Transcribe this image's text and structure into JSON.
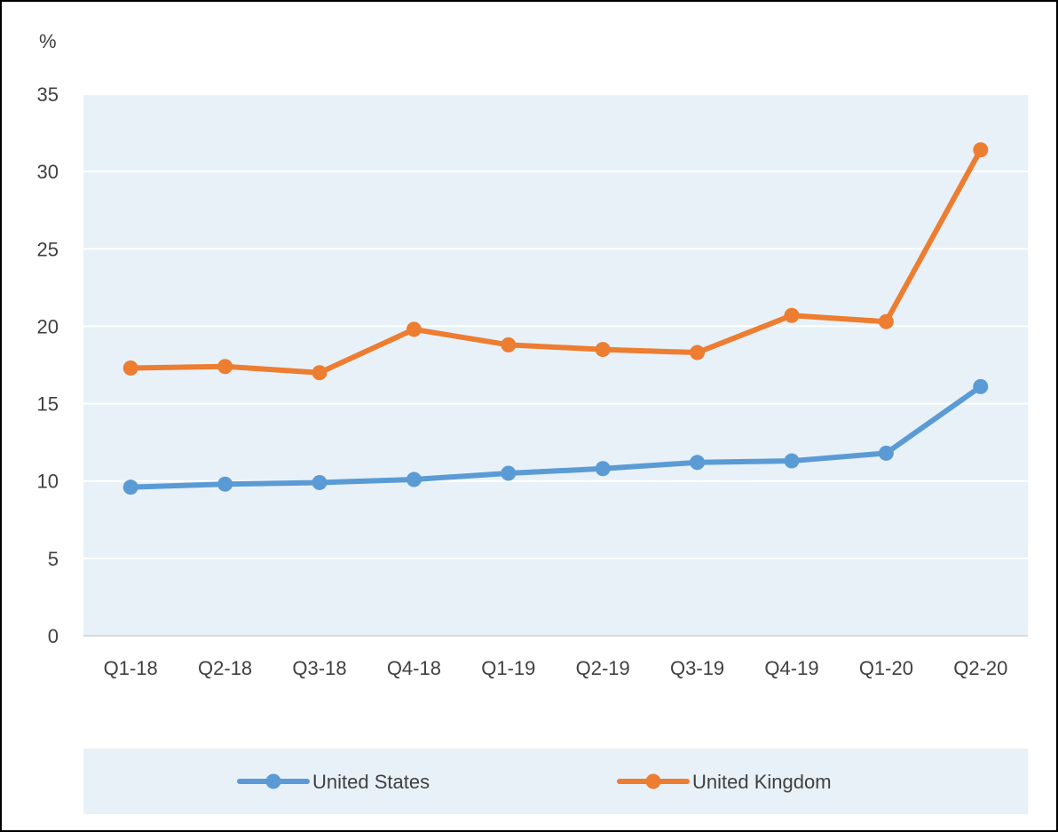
{
  "chart_data": {
    "type": "line",
    "title": "",
    "xlabel": "",
    "ylabel": "%",
    "categories": [
      "Q1-18",
      "Q2-18",
      "Q3-18",
      "Q4-18",
      "Q1-19",
      "Q2-19",
      "Q3-19",
      "Q4-19",
      "Q1-20",
      "Q2-20"
    ],
    "ylim": [
      0,
      35
    ],
    "yticks": [
      "0",
      "5",
      "10",
      "15",
      "20",
      "25",
      "30",
      "35"
    ],
    "grid": true,
    "legend_position": "bottom",
    "series": [
      {
        "name": "United States",
        "color": "#5b9bd5",
        "values": [
          9.6,
          9.8,
          9.9,
          10.1,
          10.5,
          10.8,
          11.2,
          11.3,
          11.8,
          16.1
        ]
      },
      {
        "name": "United Kingdom",
        "color": "#ed7d31",
        "values": [
          17.3,
          17.4,
          17.0,
          19.8,
          18.8,
          18.5,
          18.3,
          20.7,
          20.3,
          31.4
        ]
      }
    ]
  },
  "colors": {
    "plot_background": "#e8f1f8",
    "legend_background": "#e8f1f8",
    "gridline": "#ffffff",
    "axis_text": "#404040",
    "axis_line": "#d0d0d0"
  }
}
